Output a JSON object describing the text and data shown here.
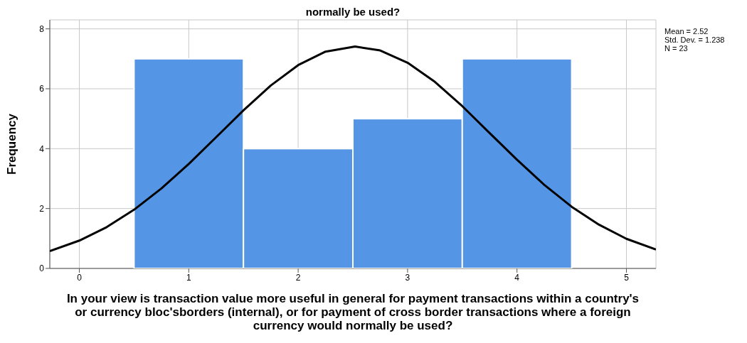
{
  "chart_data": {
    "type": "histogram",
    "title": "normally be used?",
    "xlabel": "In your view is transaction value more useful in general for payment transactions within a country's or currency bloc'sborders (internal), or for payment of cross border transactions where a foreign currency would normally be used?",
    "ylabel": "Frequency",
    "bins": [
      0.5,
      1.5,
      2.5,
      3.5,
      4.5
    ],
    "values": [
      7,
      4,
      5,
      7
    ],
    "color": "#5595e5",
    "xlim": [
      -0.27,
      5.27
    ],
    "xticks": [
      0,
      1,
      2,
      3,
      4,
      5
    ],
    "ylim": [
      0,
      8.3
    ],
    "yticks": [
      0,
      2,
      4,
      6,
      8
    ],
    "grid": true,
    "series": [
      {
        "type": "line",
        "color": "#000000",
        "x": [
          -0.27,
          0,
          0.25,
          0.5,
          0.75,
          1,
          1.25,
          1.5,
          1.75,
          2,
          2.25,
          2.52,
          2.75,
          3,
          3.25,
          3.5,
          3.75,
          4,
          4.25,
          4.5,
          4.75,
          5,
          5.27
        ],
        "values": [
          0.58,
          0.93,
          1.38,
          1.96,
          2.67,
          3.49,
          4.38,
          5.28,
          6.11,
          6.79,
          7.24,
          7.41,
          7.28,
          6.87,
          6.23,
          5.42,
          4.52,
          3.63,
          2.79,
          2.06,
          1.46,
          0.99,
          0.63
        ]
      }
    ],
    "annotations": [
      "Mean = 2.52",
      "Std. Dev. = 1.238",
      "N = 23"
    ]
  }
}
